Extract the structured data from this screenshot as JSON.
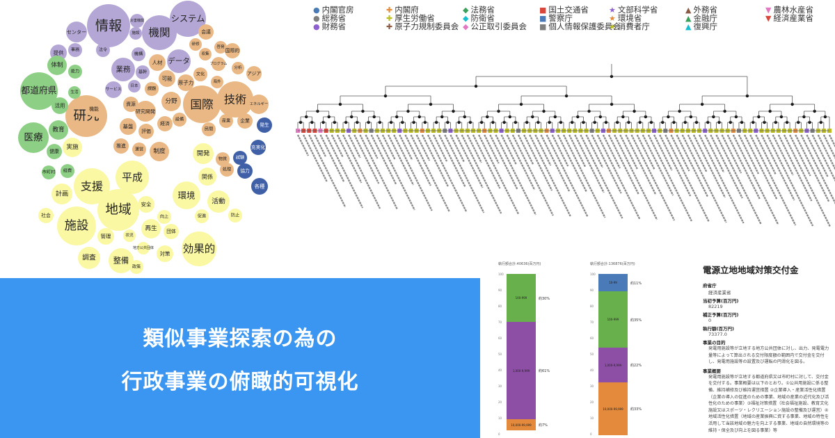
{
  "banner": {
    "line1": "類似事業探索の為の",
    "line2": "行政事業の俯瞰的可視化"
  },
  "colors": {
    "banner_bg": "#3b96f1",
    "purple": "#b4a7d6",
    "orange": "#e9b885",
    "green": "#8ecf86",
    "yellow": "#fbf8a4",
    "blue": "#3f5fa7",
    "bar_green": "#68b04c",
    "bar_purple": "#8d4fa6",
    "bar_orange": "#e38a3c",
    "bar_blue": "#4a7ab8"
  },
  "legend": [
    {
      "label": "内閣官房",
      "symbol": "●",
      "color": "#4a7ab8"
    },
    {
      "label": "内閣府",
      "symbol": "✚",
      "color": "#e38a3c"
    },
    {
      "label": "法務省",
      "symbol": "◆",
      "color": "#3aa05a"
    },
    {
      "label": "国土交通省",
      "symbol": "■",
      "color": "#d9463b"
    },
    {
      "label": "文部科学省",
      "symbol": "★",
      "color": "#8d5fd0"
    },
    {
      "label": "外務省",
      "symbol": "▲",
      "color": "#8a5a44"
    },
    {
      "label": "農林水産省",
      "symbol": "▼",
      "color": "#e377c2"
    },
    {
      "label": "総務省",
      "symbol": "●",
      "color": "#7f7f7f"
    },
    {
      "label": "厚生労働省",
      "symbol": "✚",
      "color": "#bcbd22"
    },
    {
      "label": "防衛省",
      "symbol": "◆",
      "color": "#17becf"
    },
    {
      "label": "警察庁",
      "symbol": "■",
      "color": "#4a7ab8"
    },
    {
      "label": "環境省",
      "symbol": "★",
      "color": "#e38a3c"
    },
    {
      "label": "金融庁",
      "symbol": "▲",
      "color": "#3aa05a"
    },
    {
      "label": "経済産業省",
      "symbol": "▼",
      "color": "#d9463b"
    },
    {
      "label": "財務省",
      "symbol": "●",
      "color": "#8d5fd0"
    },
    {
      "label": "原子力規制委員会",
      "symbol": "✚",
      "color": "#8a5a44"
    },
    {
      "label": "公正取引委員会",
      "symbol": "◆",
      "color": "#e377c2"
    },
    {
      "label": "個人情報保護委員会",
      "symbol": "■",
      "color": "#7f7f7f"
    },
    {
      "label": "消費者庁",
      "symbol": "★",
      "color": "#bcbd22"
    },
    {
      "label": "復興庁",
      "symbol": "▲",
      "color": "#17becf"
    }
  ],
  "bubbles": [
    {
      "t": "情報",
      "c": "purple"
    },
    {
      "t": "機関",
      "c": "purple"
    },
    {
      "t": "システム",
      "c": "purple"
    },
    {
      "t": "センター",
      "c": "purple"
    },
    {
      "t": "災害機関",
      "c": "purple"
    },
    {
      "t": "施設",
      "c": "purple"
    },
    {
      "t": "会議",
      "c": "orange"
    },
    {
      "t": "研修",
      "c": "orange"
    },
    {
      "t": "啓発",
      "c": "orange"
    },
    {
      "t": "国際的",
      "c": "orange"
    },
    {
      "t": "収集",
      "c": "orange"
    },
    {
      "t": "データ",
      "c": "purple"
    },
    {
      "t": "人材",
      "c": "orange"
    },
    {
      "t": "提供",
      "c": "purple"
    },
    {
      "t": "事務",
      "c": "purple"
    },
    {
      "t": "法令",
      "c": "purple"
    },
    {
      "t": "機構",
      "c": "purple"
    },
    {
      "t": "プログラム",
      "c": "orange"
    },
    {
      "t": "アジア",
      "c": "orange"
    },
    {
      "t": "体制",
      "c": "green"
    },
    {
      "t": "能力",
      "c": "green"
    },
    {
      "t": "業務",
      "c": "purple"
    },
    {
      "t": "基幹",
      "c": "purple"
    },
    {
      "t": "可能",
      "c": "orange"
    },
    {
      "t": "原子力",
      "c": "orange"
    },
    {
      "t": "文化",
      "c": "orange"
    },
    {
      "t": "分析",
      "c": "orange"
    },
    {
      "t": "海外",
      "c": "orange"
    },
    {
      "t": "技術",
      "c": "orange"
    },
    {
      "t": "都道府県",
      "c": "green"
    },
    {
      "t": "研究",
      "c": "orange"
    },
    {
      "t": "国際",
      "c": "orange"
    },
    {
      "t": "エネルギー",
      "c": "orange"
    },
    {
      "t": "活用",
      "c": "green"
    },
    {
      "t": "生活",
      "c": "green"
    },
    {
      "t": "サービス",
      "c": "purple"
    },
    {
      "t": "日本",
      "c": "purple"
    },
    {
      "t": "課題",
      "c": "orange"
    },
    {
      "t": "分野",
      "c": "orange"
    },
    {
      "t": "資源",
      "c": "orange"
    },
    {
      "t": "研究開発",
      "c": "orange"
    },
    {
      "t": "医療",
      "c": "green"
    },
    {
      "t": "教育",
      "c": "green"
    },
    {
      "t": "機能",
      "c": "orange"
    },
    {
      "t": "地域",
      "c": "yellow"
    },
    {
      "t": "基盤",
      "c": "orange"
    },
    {
      "t": "評価",
      "c": "orange"
    },
    {
      "t": "経済",
      "c": "orange"
    },
    {
      "t": "設備",
      "c": "orange"
    },
    {
      "t": "民間",
      "c": "orange"
    },
    {
      "t": "産業",
      "c": "orange"
    },
    {
      "t": "企業",
      "c": "orange"
    },
    {
      "t": "発生",
      "c": "blue"
    },
    {
      "t": "実施",
      "c": "yellow"
    },
    {
      "t": "推進",
      "c": "orange"
    },
    {
      "t": "運営",
      "c": "orange"
    },
    {
      "t": "制度",
      "c": "orange"
    },
    {
      "t": "開発",
      "c": "yellow"
    },
    {
      "t": "物質",
      "c": "orange"
    },
    {
      "t": "試験",
      "c": "blue"
    },
    {
      "t": "充実化",
      "c": "blue"
    },
    {
      "t": "健康",
      "c": "green"
    },
    {
      "t": "経費",
      "c": "green"
    },
    {
      "t": "市町村",
      "c": "green"
    },
    {
      "t": "支援",
      "c": "yellow"
    },
    {
      "t": "平成",
      "c": "yellow"
    },
    {
      "t": "関係",
      "c": "yellow"
    },
    {
      "t": "処理",
      "c": "orange"
    },
    {
      "t": "協力",
      "c": "blue"
    },
    {
      "t": "各種",
      "c": "blue"
    },
    {
      "t": "計画",
      "c": "yellow"
    },
    {
      "t": "環境",
      "c": "yellow"
    },
    {
      "t": "活動",
      "c": "yellow"
    },
    {
      "t": "施設",
      "c": "yellow"
    },
    {
      "t": "安全",
      "c": "yellow"
    },
    {
      "t": "社会",
      "c": "yellow"
    },
    {
      "t": "促進",
      "c": "yellow"
    },
    {
      "t": "防止",
      "c": "yellow"
    },
    {
      "t": "再生",
      "c": "yellow"
    },
    {
      "t": "管理",
      "c": "yellow"
    },
    {
      "t": "状況",
      "c": "yellow"
    },
    {
      "t": "団体",
      "c": "yellow"
    },
    {
      "t": "効果的",
      "c": "yellow"
    },
    {
      "t": "調査",
      "c": "yellow"
    },
    {
      "t": "整備",
      "c": "yellow"
    },
    {
      "t": "対策",
      "c": "yellow"
    },
    {
      "t": "政策",
      "c": "yellow"
    },
    {
      "t": "地方公共団体",
      "c": "yellow"
    },
    {
      "t": "向上",
      "c": "yellow"
    },
    {
      "t": "災害",
      "c": "yellow"
    }
  ],
  "bars": {
    "left": {
      "title": "執行額合計:40636(百万円)",
      "segments": [
        {
          "label": "100-999",
          "pct": "約30%",
          "share": 0.3,
          "color": "bar_green"
        },
        {
          "label": "1,000-9,999",
          "pct": "約61%",
          "share": 0.61,
          "color": "bar_purple"
        },
        {
          "label": "10,000-99,999",
          "pct": "約7%",
          "share": 0.07,
          "color": "bar_orange"
        }
      ]
    },
    "right": {
      "title": "執行額合計:136876(百万円)",
      "segments": [
        {
          "label": "10-99",
          "pct": "約11%",
          "share": 0.11,
          "color": "bar_blue"
        },
        {
          "label": "100-999",
          "pct": "約35%",
          "share": 0.35,
          "color": "bar_green"
        },
        {
          "label": "1,000-9,999",
          "pct": "約22%",
          "share": 0.22,
          "color": "bar_purple"
        },
        {
          "label": "10,000-99,999",
          "pct": "約33%",
          "share": 0.33,
          "color": "bar_orange"
        }
      ]
    }
  },
  "detail": {
    "title": "電源立地地域対策交付金",
    "ministry_label": "府省庁",
    "ministry_value": "経済産業省",
    "initial_budget_label": "当初予算(百万円)",
    "initial_budget_value": "82219",
    "supp_budget_label": "補正予算(百万円)",
    "supp_budget_value": "0",
    "execution_label": "執行額(百万円)",
    "execution_value": "73377.0",
    "purpose_label": "事業の目的",
    "purpose_text": "発電用施設等が立地する地方公共団体に対し、出力、発電電力量等によって算出される交付限度額の範囲内で交付金を交付し、発電用施設等の設置及び運転の円滑化を図る。",
    "overview_label": "事業概要",
    "overview_text": "発電用施設等が立地する都道府県又は市町村に対して、交付金を交付する。事業概要は以下のとおり。①公共用施設に係る整備、維持補修及び維持運営措置 ②企業導入・産業活性化措置（企業の導入の促進のための事業、地域の産業の近代化及び活性化のための事業）③福祉対策措置（社会福祉施設、教育文化施設又はスポーツ・レクリエーション施設の整備及び運営）④地域活性化措置（地域の産業振興に資する事業、地域の特性を活用して当該地域の魅力を向上する事業、地域の自然環境等の維持・保全及び向上を図る事業）等"
  }
}
